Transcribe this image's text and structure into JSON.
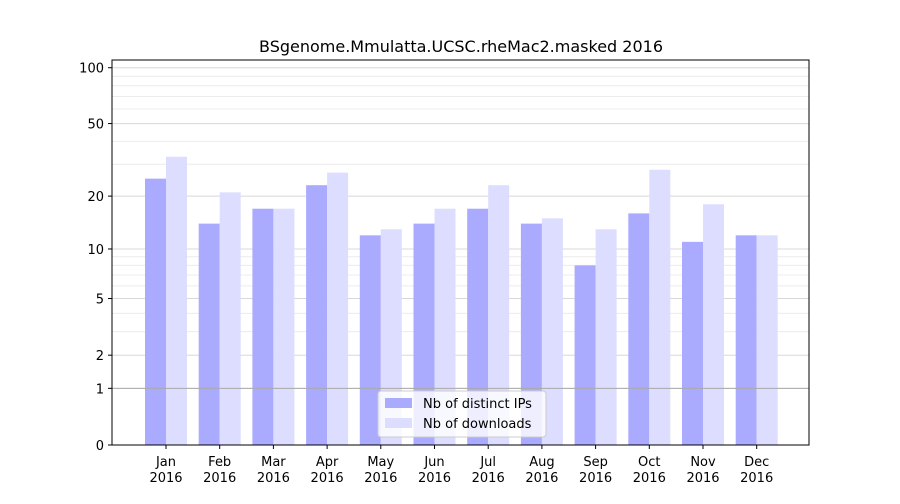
{
  "chart_data": {
    "type": "bar",
    "title": "BSgenome.Mmulatta.UCSC.rheMac2.masked 2016",
    "xlabel": "",
    "ylabel": "",
    "yscale": "log(1+y)",
    "ylim": [
      0,
      110
    ],
    "categories": [
      "Jan\n2016",
      "Feb\n2016",
      "Mar\n2016",
      "Apr\n2016",
      "May\n2016",
      "Jun\n2016",
      "Jul\n2016",
      "Aug\n2016",
      "Sep\n2016",
      "Oct\n2016",
      "Nov\n2016",
      "Dec\n2016"
    ],
    "yticks": [
      0,
      1,
      2,
      5,
      10,
      20,
      50,
      100
    ],
    "series": [
      {
        "name": "Nb of distinct IPs",
        "color": "#aaaaff",
        "values": [
          25,
          14,
          17,
          23,
          12,
          14,
          17,
          14,
          8,
          16,
          11,
          12
        ]
      },
      {
        "name": "Nb of downloads",
        "color": "#ddddff",
        "values": [
          33,
          21,
          17,
          27,
          13,
          17,
          23,
          15,
          13,
          28,
          18,
          12
        ]
      }
    ],
    "legend": "bottom-center",
    "grid": "horizontal"
  }
}
